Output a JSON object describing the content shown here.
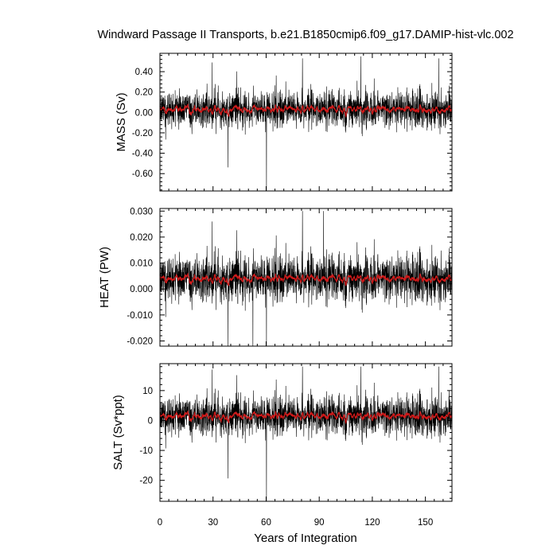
{
  "title": "Windward Passage II Transports, b.e21.B1850cmip6.f09_g17.DAMIP-hist-vlc.002",
  "xlabel": "Years of Integration",
  "colors": {
    "raw": "#000000",
    "smooth": "#d11a1a",
    "frame": "#000000",
    "background": "#ffffff"
  },
  "chart_data": [
    {
      "type": "line",
      "ylabel": "MASS (Sv)",
      "xlim": [
        0,
        165
      ],
      "ylim": [
        -0.77,
        0.58
      ],
      "xticks": [
        0,
        30,
        60,
        90,
        120,
        150
      ],
      "yticks": [
        -0.6,
        -0.4,
        -0.2,
        0.0,
        0.2,
        0.4
      ],
      "ytick_labels": [
        "-0.60",
        "-0.40",
        "-0.20",
        "0.00",
        "0.20",
        "0.40"
      ],
      "series": [
        {
          "role": "monthly",
          "color": "#000000",
          "mean": 0.03,
          "spread": 0.09,
          "min": -0.77,
          "max": 0.55
        },
        {
          "role": "annual-mean",
          "color": "#d11a1a",
          "mean": 0.03,
          "spread": 0.03
        }
      ],
      "extremes": [
        {
          "x": 29.5,
          "y": 0.49
        },
        {
          "x": 60.2,
          "y": -0.77
        },
        {
          "x": 80.5,
          "y": 0.53
        },
        {
          "x": 113.5,
          "y": 0.55
        },
        {
          "x": 157.5,
          "y": 0.53
        }
      ]
    },
    {
      "type": "line",
      "ylabel": "HEAT (PW)",
      "xlim": [
        0,
        165
      ],
      "ylim": [
        -0.022,
        0.031
      ],
      "xticks": [
        0,
        30,
        60,
        90,
        120,
        150
      ],
      "yticks": [
        -0.02,
        -0.01,
        0.0,
        0.01,
        0.02,
        0.03
      ],
      "ytick_labels": [
        "-0.020",
        "-0.010",
        "0.000",
        "0.010",
        "0.020",
        "0.030"
      ],
      "series": [
        {
          "role": "monthly",
          "color": "#000000",
          "mean": 0.004,
          "spread": 0.0045,
          "min": -0.022,
          "max": 0.03
        },
        {
          "role": "annual-mean",
          "color": "#d11a1a",
          "mean": 0.004,
          "spread": 0.0012
        }
      ],
      "extremes": [
        {
          "x": 29.5,
          "y": 0.026
        },
        {
          "x": 52.5,
          "y": -0.022
        },
        {
          "x": 60.2,
          "y": -0.022
        },
        {
          "x": 80.5,
          "y": 0.03
        },
        {
          "x": 92.5,
          "y": 0.03
        }
      ]
    },
    {
      "type": "line",
      "ylabel": "SALT (Sv*ppt)",
      "xlim": [
        0,
        165
      ],
      "ylim": [
        -27,
        19
      ],
      "xticks": [
        0,
        30,
        60,
        90,
        120,
        150
      ],
      "yticks": [
        -20,
        -10,
        0,
        10
      ],
      "ytick_labels": [
        "-20",
        "-10",
        "0",
        "10"
      ],
      "series": [
        {
          "role": "monthly",
          "color": "#000000",
          "mean": 1.5,
          "spread": 3.3,
          "min": -27,
          "max": 18
        },
        {
          "role": "annual-mean",
          "color": "#d11a1a",
          "mean": 1.5,
          "spread": 1.0
        }
      ],
      "extremes": [
        {
          "x": 29.5,
          "y": 17
        },
        {
          "x": 60.2,
          "y": -27
        },
        {
          "x": 80.5,
          "y": 18
        },
        {
          "x": 113.5,
          "y": 18
        },
        {
          "x": 157.5,
          "y": 18
        }
      ]
    }
  ]
}
